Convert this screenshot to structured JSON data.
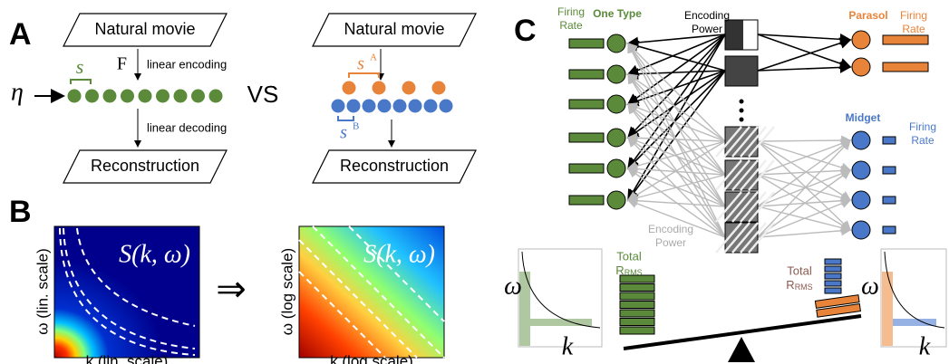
{
  "panel_a": {
    "label": "A",
    "left": {
      "top_box": "Natural movie",
      "operator": "F",
      "encoding": "linear encoding",
      "spacing": "s",
      "input": "η",
      "decoding": "linear decoding",
      "bottom_box": "Reconstruction"
    },
    "versus": "VS",
    "right": {
      "top_box": "Natural movie",
      "spacing_a": "s",
      "spacing_a_sup": "A",
      "spacing_b": "s",
      "spacing_b_sup": "B",
      "bottom_box": "Reconstruction"
    }
  },
  "panel_b": {
    "label": "B",
    "left": {
      "formula": "S(k, ω)",
      "y_label": "ω (lin. scale)",
      "x_label": "k (lin. scale)"
    },
    "implies": "⇒",
    "right": {
      "formula": "S(k, ω)",
      "y_label": "ω (log scale)",
      "x_label": "k (log scale)"
    }
  },
  "panel_c": {
    "label": "C",
    "one_type_rate": [
      "Firing",
      "Rate"
    ],
    "one_type": "One Type",
    "encoding_power_top": [
      "Encoding",
      "Power"
    ],
    "parasol": "Parasol",
    "parasol_rate": [
      "Firing",
      "Rate"
    ],
    "midget": "Midget",
    "midget_rate": [
      "Firing",
      "Rate"
    ],
    "encoding_power_bottom": [
      "Encoding",
      "Power"
    ],
    "total_left": {
      "word": "Total",
      "r": "R",
      "sub": "RMS"
    },
    "total_right": {
      "word": "Total",
      "r": "R",
      "sub": "RMS"
    },
    "plot_left": {
      "y": "ω",
      "x": "k"
    },
    "plot_right": {
      "y": "ω",
      "x": "k"
    }
  }
}
